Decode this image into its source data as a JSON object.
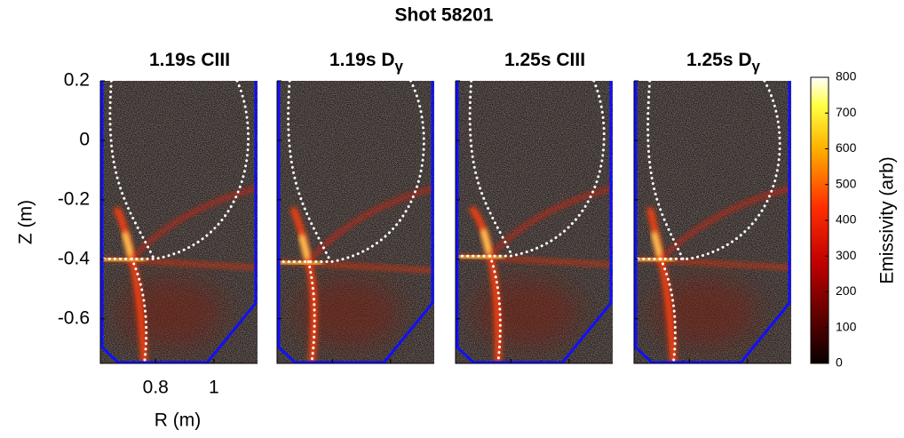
{
  "title": "Shot 58201",
  "ylabel": "Z (m)",
  "xlabel": "R (m)",
  "chart_data": [
    {
      "type": "image",
      "title": "1.19s CIII",
      "xlim": [
        0.61,
        1.15
      ],
      "ylim": [
        -0.75,
        0.2
      ],
      "xticks": [
        0.8,
        1
      ],
      "yticks": [
        -0.6,
        -0.4,
        -0.2,
        0,
        0.2
      ],
      "tick_labels": true
    },
    {
      "type": "image",
      "title": "1.19s D",
      "title_subscript": "γ",
      "xlim": [
        0.61,
        1.15
      ],
      "ylim": [
        -0.75,
        0.2
      ],
      "xticks": [
        0.8,
        1
      ],
      "yticks": [
        -0.6,
        -0.4,
        -0.2,
        0,
        0.2
      ],
      "tick_labels": false
    },
    {
      "type": "image",
      "title": "1.25s CIII",
      "xlim": [
        0.61,
        1.15
      ],
      "ylim": [
        -0.75,
        0.2
      ],
      "xticks": [
        0.8,
        1
      ],
      "yticks": [
        -0.6,
        -0.4,
        -0.2,
        0,
        0.2
      ],
      "tick_labels": false
    },
    {
      "type": "image",
      "title": "1.25s D",
      "title_subscript": "γ",
      "xlim": [
        0.61,
        1.15
      ],
      "ylim": [
        -0.75,
        0.2
      ],
      "xticks": [
        0.8,
        1
      ],
      "yticks": [
        -0.6,
        -0.4,
        -0.2,
        0,
        0.2
      ],
      "tick_labels": false
    }
  ],
  "colorbar": {
    "label": "Emissivity (arb)",
    "lim": [
      0,
      800
    ],
    "ticks": [
      0,
      100,
      200,
      300,
      400,
      500,
      600,
      700,
      800
    ]
  }
}
